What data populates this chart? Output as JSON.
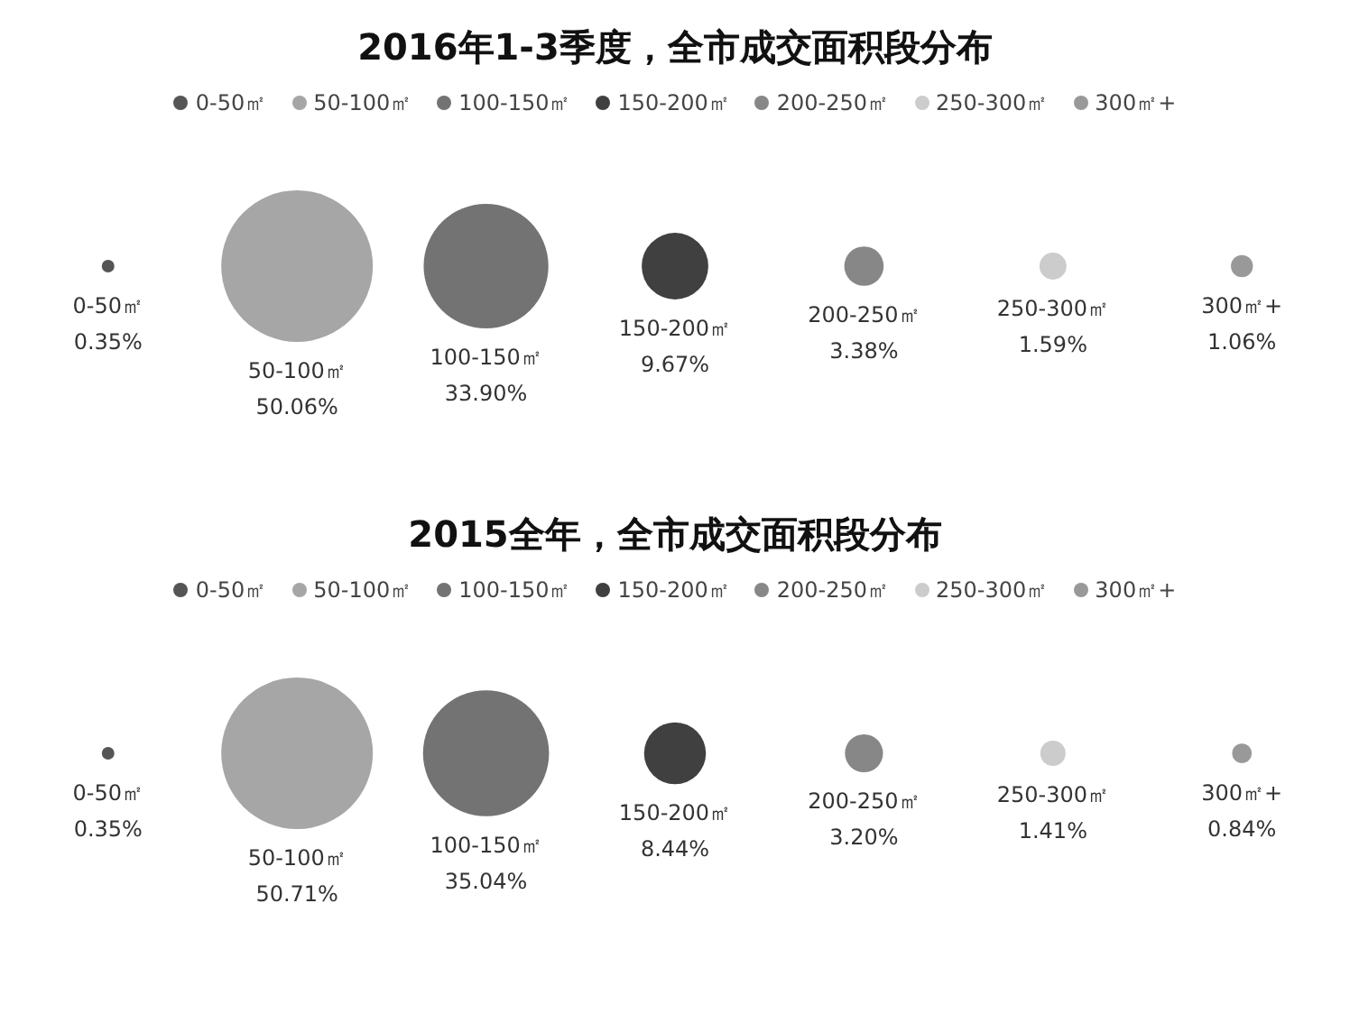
{
  "chart_data": [
    {
      "type": "other",
      "title": "2016年1-3季度，全市成交面积段分布",
      "legend": "top",
      "series": [
        {
          "name": "0-50㎡",
          "color": "#555555",
          "values": [
            0.35
          ],
          "value_labels": [
            "0.35%"
          ]
        },
        {
          "name": "50-100㎡",
          "color": "#a6a6a6",
          "values": [
            50.06
          ],
          "value_labels": [
            "50.06%"
          ]
        },
        {
          "name": "100-150㎡",
          "color": "#737373",
          "values": [
            33.9
          ],
          "value_labels": [
            "33.90%"
          ]
        },
        {
          "name": "150-200㎡",
          "color": "#404040",
          "values": [
            9.67
          ],
          "value_labels": [
            "9.67%"
          ]
        },
        {
          "name": "200-250㎡",
          "color": "#878787",
          "values": [
            3.38
          ],
          "value_labels": [
            "3.38%"
          ]
        },
        {
          "name": "250-300㎡",
          "color": "#cccccc",
          "values": [
            1.59
          ],
          "value_labels": [
            "1.59%"
          ]
        },
        {
          "name": "300㎡+",
          "color": "#999999",
          "values": [
            1.06
          ],
          "value_labels": [
            "1.06%"
          ]
        }
      ]
    },
    {
      "type": "other",
      "title": "2015全年，全市成交面积段分布",
      "legend": "top",
      "series": [
        {
          "name": "0-50㎡",
          "color": "#555555",
          "values": [
            0.35
          ],
          "value_labels": [
            "0.35%"
          ]
        },
        {
          "name": "50-100㎡",
          "color": "#a6a6a6",
          "values": [
            50.71
          ],
          "value_labels": [
            "50.71%"
          ]
        },
        {
          "name": "100-150㎡",
          "color": "#737373",
          "values": [
            35.04
          ],
          "value_labels": [
            "35.04%"
          ]
        },
        {
          "name": "150-200㎡",
          "color": "#404040",
          "values": [
            8.44
          ],
          "value_labels": [
            "8.44%"
          ]
        },
        {
          "name": "200-250㎡",
          "color": "#878787",
          "values": [
            3.2
          ],
          "value_labels": [
            "3.20%"
          ]
        },
        {
          "name": "250-300㎡",
          "color": "#cccccc",
          "values": [
            1.41
          ],
          "value_labels": [
            "1.41%"
          ]
        },
        {
          "name": "300㎡+",
          "color": "#999999",
          "values": [
            0.84
          ],
          "value_labels": [
            "0.84%"
          ]
        }
      ]
    }
  ]
}
